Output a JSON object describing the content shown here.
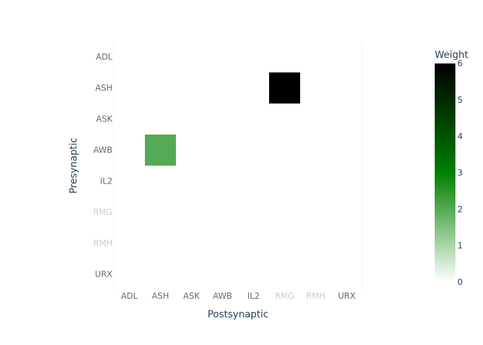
{
  "chart_data": {
    "type": "heatmap",
    "x": [
      "ADL",
      "ASH",
      "ASK",
      "AWB",
      "IL2",
      "RMG",
      "RMH",
      "URX"
    ],
    "y": [
      "ADL",
      "ASH",
      "ASK",
      "AWB",
      "IL2",
      "RMG",
      "RMH",
      "URX"
    ],
    "cells": [
      {
        "pre": "ASH",
        "post": "RMG",
        "weight": 6
      },
      {
        "pre": "AWB",
        "post": "ASH",
        "weight": 2
      }
    ],
    "xlabel": "Postsynaptic",
    "ylabel": "Presynaptic",
    "colorbar": {
      "title": "Weight",
      "range": [
        0,
        6
      ],
      "ticks": [
        0,
        1,
        2,
        3,
        4,
        5,
        6
      ]
    },
    "colorscale": [
      "#ffffff",
      "#008000",
      "#000000"
    ],
    "x_label_colors": [
      "#666666",
      "#666666",
      "#666666",
      "#666666",
      "#666666",
      "#cccccc",
      "#cccccc",
      "#666666"
    ],
    "y_label_colors": [
      "#666666",
      "#666666",
      "#666666",
      "#666666",
      "#666666",
      "#cccccc",
      "#cccccc",
      "#666666"
    ]
  }
}
